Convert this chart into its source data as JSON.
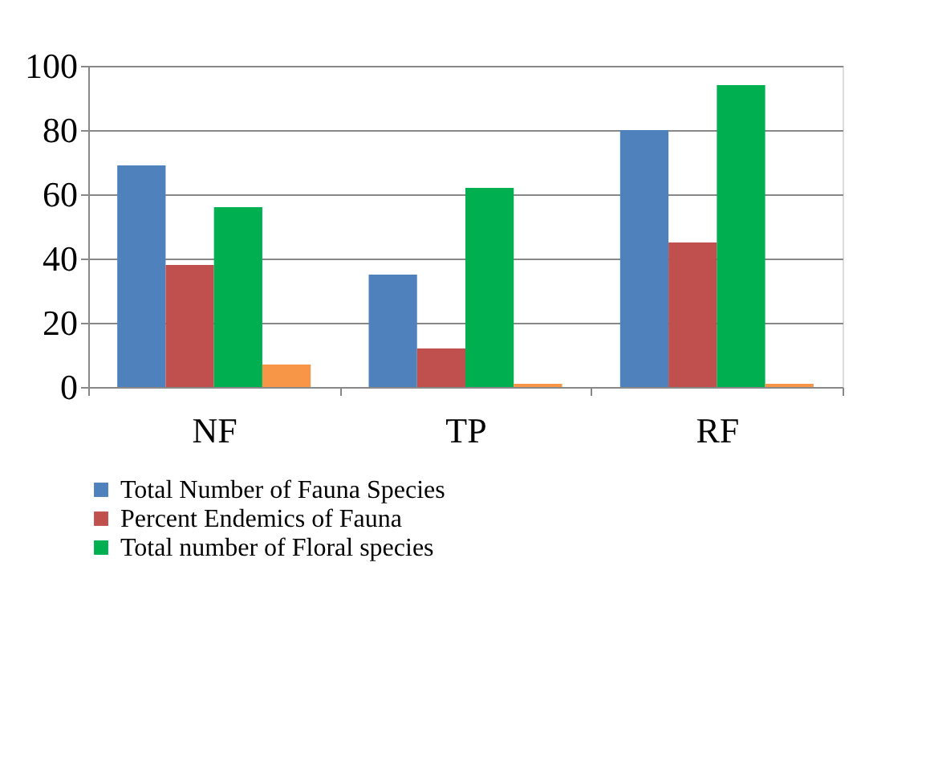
{
  "chart_data": {
    "type": "bar",
    "categories": [
      "NF",
      "TP",
      "RF"
    ],
    "series": [
      {
        "name": "Total Number of Fauna Species",
        "color": "#4f81bd",
        "values": [
          69,
          35,
          80
        ]
      },
      {
        "name": "Percent Endemics of Fauna",
        "color": "#c0504d",
        "values": [
          38,
          12,
          45
        ]
      },
      {
        "name": "Total number of Floral species",
        "color": "#00b050",
        "values": [
          56,
          62,
          94
        ]
      },
      {
        "color": "#f79646",
        "values": [
          7,
          1,
          1
        ]
      }
    ],
    "ylim": [
      0,
      100
    ],
    "yticks": [
      0,
      20,
      40,
      60,
      80,
      100
    ],
    "grid": "y",
    "legend": "bottom"
  }
}
